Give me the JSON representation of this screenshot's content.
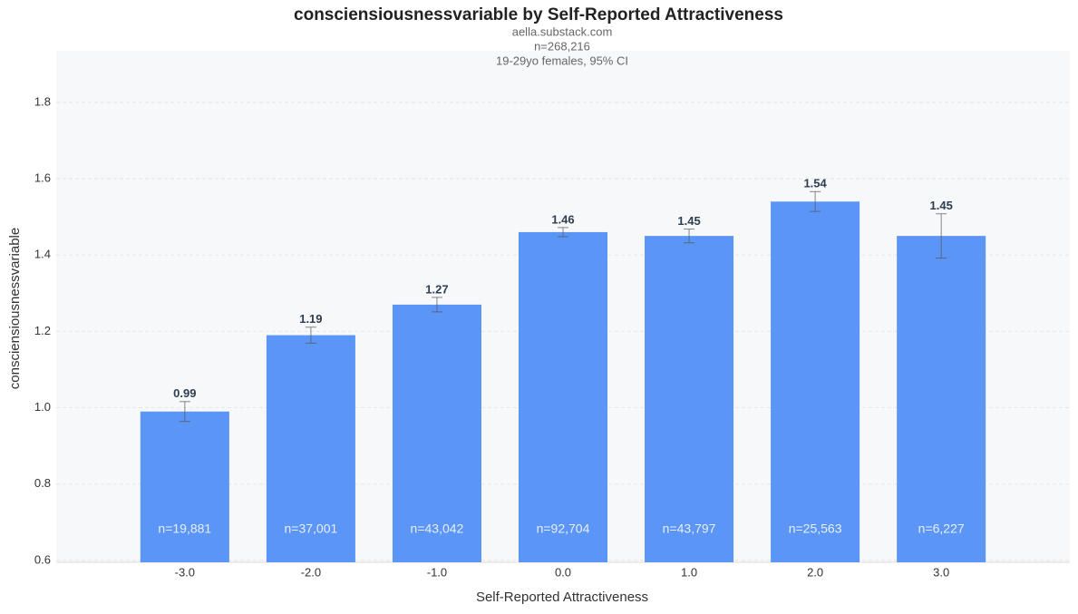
{
  "chart_data": {
    "type": "bar",
    "title": "consciensiousnessvariable by Self-Reported Attractiveness",
    "subtitle": [
      "aella.substack.com",
      "n=268,216",
      "19-29yo females, 95% CI"
    ],
    "x_label": "Self-Reported Attractiveness",
    "y_label": "consciensiousnessvariable",
    "x": [
      -3,
      -2,
      -1,
      0,
      1,
      2,
      3
    ],
    "values": [
      0.99,
      1.19,
      1.27,
      1.46,
      1.45,
      1.54,
      1.45
    ],
    "errors": [
      0.026,
      0.021,
      0.019,
      0.012,
      0.018,
      0.026,
      0.058
    ],
    "n_labels": [
      "n=19,881",
      "n=37,001",
      "n=43,042",
      "n=92,704",
      "n=43,797",
      "n=25,563",
      "n=6,227"
    ],
    "color": "#5b95f5",
    "xlim": [
      -4.02,
      4.02
    ],
    "xticks": [
      {
        "value": -3,
        "label": "-3.0"
      },
      {
        "value": -2,
        "label": "-2.0"
      },
      {
        "value": -1,
        "label": "-1.0"
      },
      {
        "value": 0,
        "label": "0.0"
      },
      {
        "value": 1,
        "label": "1.0"
      },
      {
        "value": 2,
        "label": "2.0"
      },
      {
        "value": 3,
        "label": "3.0"
      }
    ],
    "ylim": [
      0.595,
      1.935
    ],
    "yticks": [
      0.6,
      0.8,
      {
        "value": 1,
        "label": "1.0"
      },
      1.2,
      1.4,
      1.6,
      1.8
    ],
    "grid": true
  }
}
